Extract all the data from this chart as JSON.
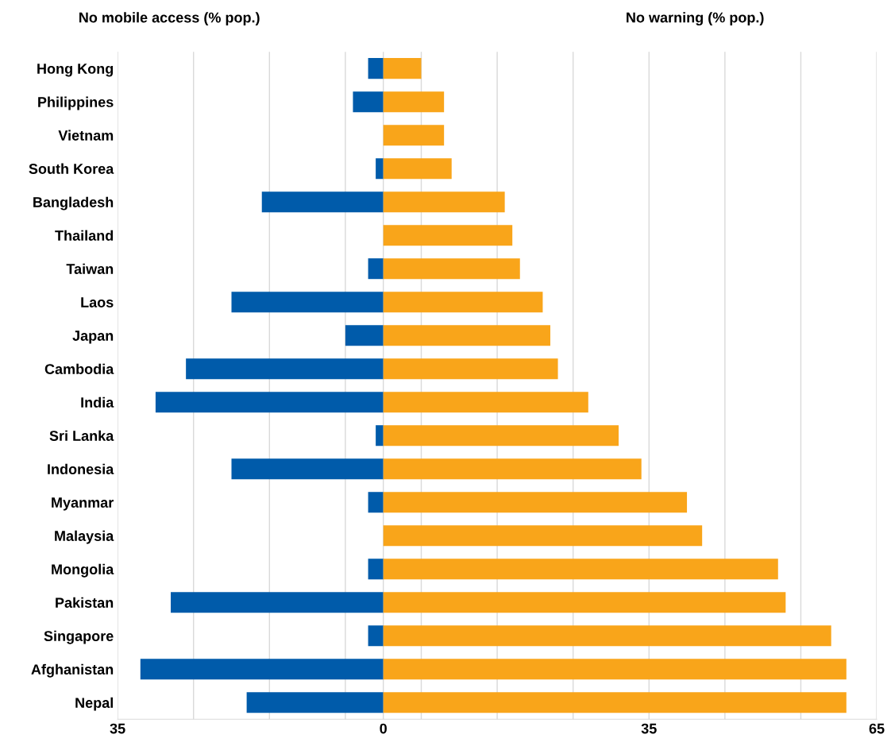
{
  "chart_data": {
    "type": "bar",
    "orientation": "horizontal",
    "stacked": true,
    "categories": [
      "Hong Kong",
      "Philippines",
      "Vietnam",
      "South Korea",
      "Bangladesh",
      "Thailand",
      "Taiwan",
      "Laos",
      "Japan",
      "Cambodia",
      "India",
      "Sri Lanka",
      "Indonesia",
      "Myanmar",
      "Malaysia",
      "Mongolia",
      "Pakistan",
      "Singapore",
      "Afghanistan",
      "Nepal"
    ],
    "series": [
      {
        "color": "#005baa",
        "values": [
          -2,
          -4,
          null,
          -1,
          -16,
          null,
          -2,
          -20,
          -5,
          -26,
          -30,
          -1,
          -20,
          -2,
          null,
          -2,
          -28,
          -2,
          -32,
          -18
        ]
      },
      {
        "color": "#f9a51a",
        "values": [
          5,
          8,
          8,
          9,
          16,
          17,
          18,
          21,
          22,
          23,
          27,
          31,
          34,
          40,
          42,
          52,
          53,
          59,
          61,
          61
        ]
      }
    ],
    "annotations": [
      "No mobile access (% pop.)",
      "No warning (% pop.)"
    ],
    "xlim": [
      -35,
      65
    ],
    "xticks": [
      {
        "value": -35,
        "label": "35"
      },
      {
        "value": -25,
        "label": null
      },
      {
        "value": -15,
        "label": null
      },
      {
        "value": -5,
        "label": null
      },
      0,
      {
        "value": 5,
        "label": null
      },
      {
        "value": 15,
        "label": null
      },
      {
        "value": 25,
        "label": null
      },
      35,
      {
        "value": 45,
        "label": null
      },
      {
        "value": 55,
        "label": null
      },
      65
    ],
    "grid": "x",
    "legend": false
  }
}
